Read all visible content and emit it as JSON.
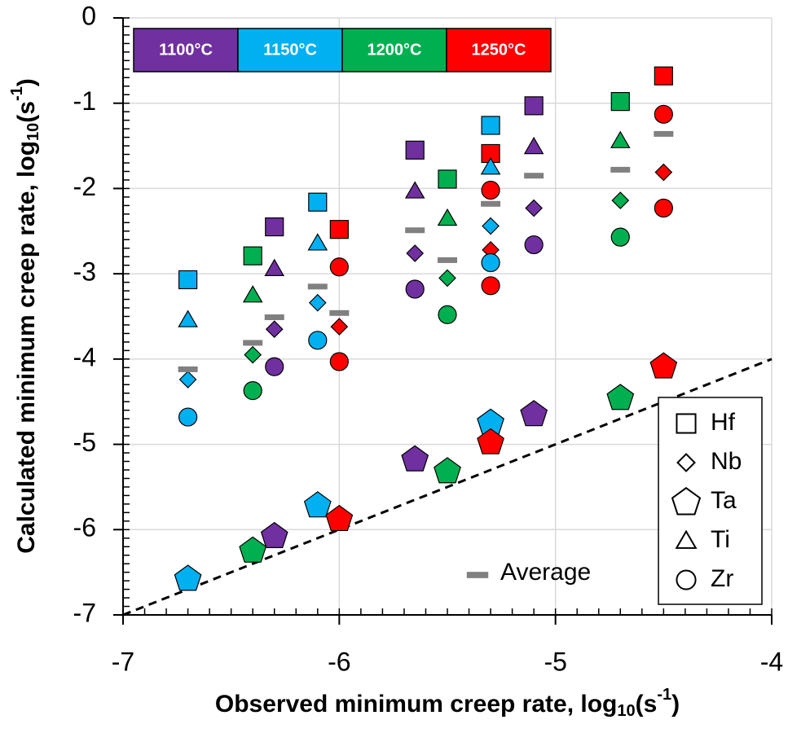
{
  "chart_data": {
    "type": "scatter",
    "xlabel": [
      "Observed minimum creep rate, log",
      "10",
      "(s",
      "-1",
      ")"
    ],
    "ylabel": [
      "Calculated minimum creep rate, log",
      "10",
      "(s",
      "-1",
      ")"
    ],
    "xlim": [
      -7,
      -4
    ],
    "xticks": [
      -7,
      -6,
      -5,
      -4
    ],
    "ylim": [
      -7,
      0
    ],
    "yticks": [
      -7,
      -6,
      -5,
      -4,
      -3,
      -2,
      -1,
      0
    ],
    "minor_step": 0.1,
    "grid": true,
    "temperatures": [
      {
        "name": "1100°C",
        "color": "#7030a0"
      },
      {
        "name": "1150°C",
        "color": "#00b0f0"
      },
      {
        "name": "1200°C",
        "color": "#00b050"
      },
      {
        "name": "1250°C",
        "color": "#ff0000"
      }
    ],
    "series": [
      {
        "name": "Hf",
        "marker": "square",
        "x": [
          -6.7,
          -6.4,
          -6.3,
          -6.1,
          -6.0,
          -5.65,
          -5.5,
          -5.3,
          -5.3,
          -5.1,
          -4.7,
          -4.5
        ],
        "values": [
          -3.07,
          -2.79,
          -2.45,
          -2.16,
          -2.48,
          -1.55,
          -1.89,
          -1.26,
          -1.59,
          -1.03,
          -0.98,
          -0.68
        ],
        "colors": [
          "#00b0f0",
          "#00b050",
          "#7030a0",
          "#00b0f0",
          "#ff0000",
          "#7030a0",
          "#00b050",
          "#00b0f0",
          "#ff0000",
          "#7030a0",
          "#00b050",
          "#ff0000"
        ]
      },
      {
        "name": "Nb",
        "marker": "diamond",
        "x": [
          -6.7,
          -6.4,
          -6.3,
          -6.1,
          -6.0,
          -5.65,
          -5.5,
          -5.3,
          -5.3,
          -5.1,
          -4.7,
          -4.5
        ],
        "values": [
          -4.24,
          -3.95,
          -3.65,
          -3.34,
          -3.62,
          -2.76,
          -3.05,
          -2.44,
          -2.72,
          -2.23,
          -2.14,
          -1.81
        ],
        "colors": [
          "#00b0f0",
          "#00b050",
          "#7030a0",
          "#00b0f0",
          "#ff0000",
          "#7030a0",
          "#00b050",
          "#00b0f0",
          "#ff0000",
          "#7030a0",
          "#00b050",
          "#ff0000"
        ]
      },
      {
        "name": "Ta",
        "marker": "pentagon",
        "x": [
          -6.7,
          -6.4,
          -6.3,
          -6.1,
          -6.0,
          -5.65,
          -5.5,
          -5.3,
          -5.3,
          -5.1,
          -4.7,
          -4.5
        ],
        "values": [
          -6.57,
          -6.24,
          -6.07,
          -5.71,
          -5.87,
          -5.17,
          -5.31,
          -4.74,
          -4.97,
          -4.64,
          -4.45,
          -4.08
        ],
        "colors": [
          "#00b0f0",
          "#00b050",
          "#7030a0",
          "#00b0f0",
          "#ff0000",
          "#7030a0",
          "#00b050",
          "#00b0f0",
          "#ff0000",
          "#7030a0",
          "#00b050",
          "#ff0000"
        ]
      },
      {
        "name": "Ti",
        "marker": "triangle",
        "x": [
          -6.7,
          -6.4,
          -6.3,
          -6.1,
          -5.65,
          -5.5,
          -5.3,
          -5.1,
          -4.7
        ],
        "values": [
          -3.54,
          -3.25,
          -2.94,
          -2.64,
          -2.03,
          -2.35,
          -1.75,
          -1.51,
          -1.44
        ],
        "colors": [
          "#00b0f0",
          "#00b050",
          "#7030a0",
          "#00b0f0",
          "#7030a0",
          "#00b050",
          "#00b0f0",
          "#7030a0",
          "#00b050"
        ]
      },
      {
        "name": "Zr",
        "marker": "circle",
        "x": [
          -6.7,
          -6.4,
          -6.3,
          -6.1,
          -6.0,
          -6.0,
          -5.65,
          -5.5,
          -5.3,
          -5.3,
          -5.3,
          -5.1,
          -4.7,
          -4.5,
          -4.5
        ],
        "values": [
          -4.68,
          -4.37,
          -4.09,
          -3.78,
          -2.92,
          -4.03,
          -3.18,
          -3.48,
          -2.87,
          -2.02,
          -3.14,
          -2.66,
          -2.57,
          -1.13,
          -2.23
        ],
        "colors": [
          "#00b0f0",
          "#00b050",
          "#7030a0",
          "#00b0f0",
          "#ff0000",
          "#ff0000",
          "#7030a0",
          "#00b050",
          "#00b0f0",
          "#ff0000",
          "#ff0000",
          "#7030a0",
          "#00b050",
          "#ff0000",
          "#ff0000"
        ]
      },
      {
        "name": "Average",
        "marker": "dash",
        "x": [
          -6.7,
          -6.4,
          -6.3,
          -6.1,
          -6.0,
          -5.65,
          -5.5,
          -5.3,
          -5.1,
          -4.7,
          -4.5
        ],
        "values": [
          -4.12,
          -3.81,
          -3.51,
          -3.15,
          -3.46,
          -2.49,
          -2.84,
          -2.18,
          -1.85,
          -1.78,
          -1.36
        ],
        "colors": [
          "#808080",
          "#808080",
          "#808080",
          "#808080",
          "#808080",
          "#808080",
          "#808080",
          "#808080",
          "#808080",
          "#808080",
          "#808080"
        ]
      }
    ],
    "reference_line": {
      "x": [
        -7,
        -4
      ],
      "values": [
        -7,
        -4
      ],
      "color": "#000000"
    }
  }
}
